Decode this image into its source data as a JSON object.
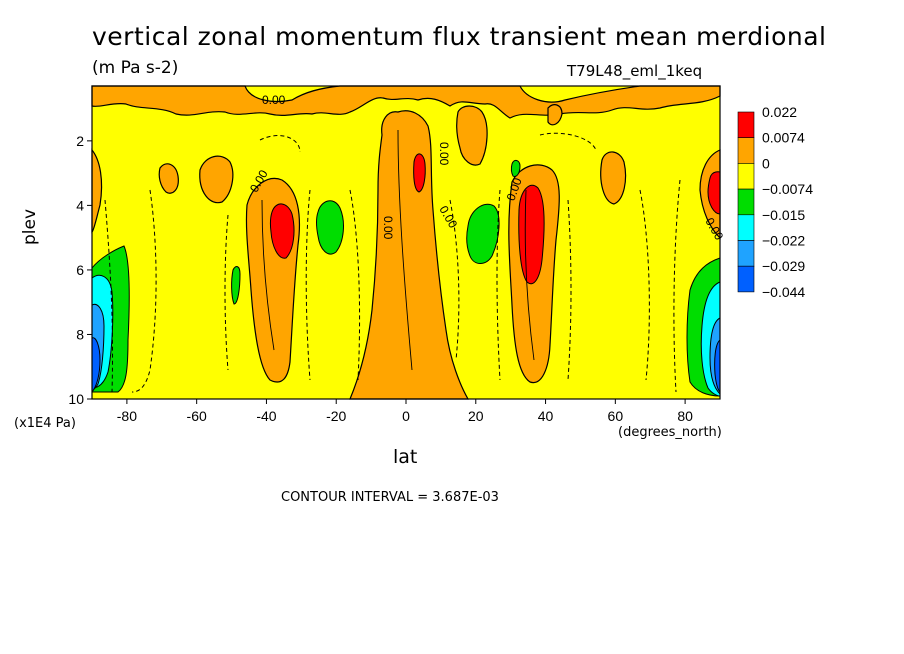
{
  "chart_data": {
    "type": "contour",
    "title": "vertical zonal momentum flux transient mean merdional",
    "subtitle": "(m Pa s-2)",
    "run_label": "T79L48_eml_1keq",
    "xlabel": "lat",
    "x_units": "(degrees_north)",
    "ylabel": "plev",
    "y_scale_note": "(x1E4 Pa)",
    "xlim": [
      -90,
      90
    ],
    "ylim": [
      10,
      0.3
    ],
    "x_ticks": [
      "-80",
      "-60",
      "-40",
      "-20",
      "0",
      "20",
      "40",
      "60",
      "80"
    ],
    "x_tick_values": [
      -80,
      -60,
      -40,
      -20,
      0,
      20,
      40,
      60,
      80
    ],
    "y_ticks": [
      "2",
      "4",
      "6",
      "8",
      "10"
    ],
    "y_tick_values": [
      2,
      4,
      6,
      8,
      10
    ],
    "contour_interval_text": "CONTOUR INTERVAL = 3.687E-03",
    "contour_labels": [
      "0.00",
      "0.00",
      "0.00",
      "0.00",
      "0.00",
      "0.00",
      "0.00"
    ],
    "legend": {
      "placement": "right",
      "levels": [
        "0.022",
        "0.0074",
        "0",
        "−0.0074",
        "−0.015",
        "−0.022",
        "−0.029",
        "−0.044"
      ],
      "colors": [
        "#ff0000",
        "#ffa500",
        "#ffff00",
        "#00dd00",
        "#00ffff",
        "#1fa3ff",
        "#0060ff"
      ]
    },
    "regions": [
      {
        "level": 1,
        "lat_range": [
          -47,
          -25
        ],
        "plev_range": [
          2.8,
          9.5
        ],
        "note": "positive lobe"
      },
      {
        "level": 3,
        "lat_range": [
          -39,
          -32
        ],
        "plev_range": [
          3.8,
          5.7
        ],
        "note": "max"
      },
      {
        "level": 1,
        "lat_range": [
          -9,
          9
        ],
        "plev_range": [
          0.8,
          10
        ],
        "note": "equatorial column"
      },
      {
        "level": 3,
        "lat_range": [
          2,
          5
        ],
        "plev_range": [
          2.3,
          3.5
        ],
        "note": "max"
      },
      {
        "level": 1,
        "lat_range": [
          27,
          44
        ],
        "plev_range": [
          2.5,
          9.5
        ],
        "note": "positive lobe"
      },
      {
        "level": 3,
        "lat_range": [
          32,
          39
        ],
        "plev_range": [
          3.2,
          6.3
        ],
        "note": "max"
      },
      {
        "level": -1,
        "lat_range": [
          -28,
          -20
        ],
        "plev_range": [
          3.5,
          5.6
        ],
        "note": "negative"
      },
      {
        "level": -1,
        "lat_range": [
          18,
          27
        ],
        "plev_range": [
          3.6,
          5.8
        ],
        "note": "negative"
      },
      {
        "level": -4,
        "lat_range": [
          -90,
          -82
        ],
        "plev_range": [
          4.8,
          9.6
        ],
        "note": "polar minimum"
      },
      {
        "level": -4,
        "lat_range": [
          82,
          90
        ],
        "plev_range": [
          5.5,
          9.7
        ],
        "note": "polar minimum"
      },
      {
        "level": 3,
        "lat_range": [
          86,
          90
        ],
        "plev_range": [
          3.1,
          4.2
        ],
        "note": "max"
      }
    ]
  }
}
